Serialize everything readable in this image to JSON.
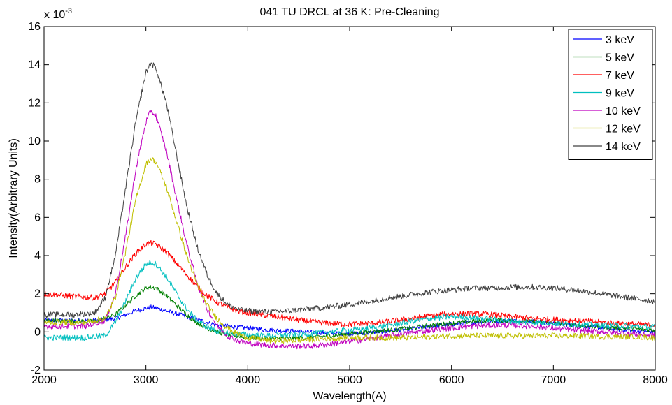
{
  "chart_data": {
    "type": "line",
    "title": "041 TU DRCL at 36 K: Pre-Cleaning",
    "xlabel": "Wavelength(A)",
    "ylabel": "Intensity(Arbitrary Units)",
    "y_multiplier_base": "x 10",
    "y_multiplier_exp": "-3",
    "xlim": [
      2000,
      8000
    ],
    "ylim": [
      -2,
      16
    ],
    "xticks": [
      2000,
      3000,
      4000,
      5000,
      6000,
      7000,
      8000
    ],
    "yticks": [
      -2,
      0,
      2,
      4,
      6,
      8,
      10,
      12,
      14,
      16
    ],
    "grid": false,
    "legend_position": "top-right",
    "series": [
      {
        "name": "3 keV",
        "color": "#0000ff",
        "noise": 0.12,
        "x": [
          2000,
          2500,
          2700,
          2800,
          2900,
          3000,
          3050,
          3100,
          3200,
          3300,
          3400,
          3500,
          3600,
          3700,
          3800,
          4000,
          4200,
          4400,
          4600,
          4800,
          5000,
          5200,
          5400,
          5600,
          5800,
          6000,
          6200,
          6400,
          6600,
          6800,
          7000,
          7200,
          7500,
          7800,
          8000
        ],
        "y": [
          0.6,
          0.6,
          0.7,
          0.9,
          1.1,
          1.25,
          1.3,
          1.25,
          1.1,
          0.95,
          0.8,
          0.65,
          0.5,
          0.35,
          0.3,
          0.2,
          0.1,
          0.05,
          0.0,
          -0.05,
          -0.1,
          -0.05,
          0.05,
          0.15,
          0.3,
          0.4,
          0.5,
          0.55,
          0.6,
          0.55,
          0.45,
          0.35,
          0.2,
          0.05,
          0.0
        ]
      },
      {
        "name": "5 keV",
        "color": "#008000",
        "noise": 0.12,
        "x": [
          2000,
          2500,
          2700,
          2800,
          2900,
          3000,
          3050,
          3100,
          3200,
          3300,
          3400,
          3500,
          3600,
          3700,
          3800,
          4000,
          4200,
          4400,
          4600,
          4800,
          5000,
          5200,
          5400,
          5600,
          5800,
          6000,
          6200,
          6400,
          6600,
          6800,
          7000,
          7200,
          7500,
          7800,
          8000
        ],
        "y": [
          0.6,
          0.55,
          0.9,
          1.4,
          1.9,
          2.3,
          2.35,
          2.3,
          1.9,
          1.4,
          0.9,
          0.5,
          0.2,
          0.0,
          -0.15,
          -0.3,
          -0.35,
          -0.35,
          -0.3,
          -0.2,
          -0.1,
          0.0,
          0.1,
          0.2,
          0.35,
          0.45,
          0.55,
          0.6,
          0.6,
          0.55,
          0.45,
          0.35,
          0.25,
          0.15,
          0.1
        ]
      },
      {
        "name": "7 keV",
        "color": "#ff0000",
        "noise": 0.15,
        "x": [
          2000,
          2300,
          2500,
          2600,
          2700,
          2800,
          2900,
          3000,
          3050,
          3100,
          3200,
          3300,
          3400,
          3500,
          3600,
          3700,
          3800,
          3900,
          4000,
          4200,
          4400,
          4600,
          4800,
          5000,
          5200,
          5400,
          5600,
          5800,
          6000,
          6200,
          6400,
          6600,
          6800,
          7000,
          7200,
          7500,
          7800,
          8000
        ],
        "y": [
          2.0,
          1.85,
          1.8,
          2.0,
          2.6,
          3.4,
          4.1,
          4.6,
          4.65,
          4.6,
          4.2,
          3.6,
          3.0,
          2.4,
          1.9,
          1.55,
          1.3,
          1.1,
          1.0,
          0.85,
          0.7,
          0.55,
          0.45,
          0.4,
          0.45,
          0.55,
          0.7,
          0.85,
          0.95,
          0.95,
          0.9,
          0.8,
          0.7,
          0.65,
          0.6,
          0.5,
          0.4,
          0.35
        ]
      },
      {
        "name": "9 keV",
        "color": "#00bfbf",
        "noise": 0.15,
        "x": [
          2000,
          2400,
          2600,
          2700,
          2800,
          2900,
          3000,
          3050,
          3100,
          3200,
          3300,
          3400,
          3500,
          3600,
          3700,
          3800,
          4000,
          4200,
          4400,
          4600,
          4800,
          5000,
          5200,
          5400,
          5600,
          5800,
          6000,
          6200,
          6400,
          6600,
          6800,
          7000,
          7200,
          7500,
          7800,
          8000
        ],
        "y": [
          -0.3,
          -0.3,
          -0.2,
          0.5,
          1.6,
          2.8,
          3.55,
          3.65,
          3.55,
          2.9,
          2.0,
          1.2,
          0.6,
          0.25,
          0.05,
          -0.05,
          -0.15,
          -0.2,
          -0.15,
          -0.1,
          0.0,
          0.1,
          0.2,
          0.35,
          0.55,
          0.7,
          0.8,
          0.75,
          0.65,
          0.55,
          0.5,
          0.45,
          0.4,
          0.35,
          0.3,
          0.25
        ]
      },
      {
        "name": "10 keV",
        "color": "#bf00bf",
        "noise": 0.15,
        "x": [
          2000,
          2400,
          2600,
          2700,
          2800,
          2900,
          3000,
          3050,
          3100,
          3200,
          3300,
          3400,
          3500,
          3600,
          3700,
          3800,
          3900,
          4000,
          4200,
          4400,
          4600,
          4800,
          5000,
          5200,
          5400,
          5600,
          5800,
          6000,
          6200,
          6400,
          6600,
          6800,
          7000,
          7200,
          7500,
          7800,
          8000
        ],
        "y": [
          0.3,
          0.3,
          0.6,
          2.0,
          5.0,
          8.5,
          11.0,
          11.6,
          11.3,
          9.5,
          7.0,
          4.6,
          2.6,
          1.2,
          0.3,
          -0.2,
          -0.45,
          -0.6,
          -0.7,
          -0.75,
          -0.75,
          -0.65,
          -0.5,
          -0.35,
          -0.2,
          -0.05,
          0.1,
          0.2,
          0.3,
          0.35,
          0.35,
          0.3,
          0.2,
          0.1,
          0.0,
          -0.1,
          -0.2
        ]
      },
      {
        "name": "12 keV",
        "color": "#bfbf00",
        "noise": 0.15,
        "x": [
          2000,
          2400,
          2600,
          2700,
          2800,
          2900,
          3000,
          3050,
          3100,
          3200,
          3300,
          3400,
          3500,
          3600,
          3700,
          3800,
          3900,
          4000,
          4200,
          4400,
          4600,
          4800,
          5000,
          5200,
          5400,
          5600,
          5800,
          6000,
          6200,
          6400,
          6600,
          6800,
          7000,
          7200,
          7500,
          7800,
          8000
        ],
        "y": [
          0.5,
          0.5,
          0.7,
          1.8,
          4.2,
          6.9,
          8.8,
          9.1,
          8.9,
          7.6,
          5.8,
          4.0,
          2.5,
          1.4,
          0.7,
          0.2,
          -0.1,
          -0.3,
          -0.45,
          -0.45,
          -0.4,
          -0.35,
          -0.3,
          -0.3,
          -0.3,
          -0.3,
          -0.25,
          -0.2,
          -0.2,
          -0.2,
          -0.2,
          -0.2,
          -0.2,
          -0.2,
          -0.25,
          -0.25,
          -0.3
        ]
      },
      {
        "name": "14 keV",
        "color": "#404040",
        "noise": 0.15,
        "x": [
          2000,
          2300,
          2500,
          2600,
          2700,
          2800,
          2900,
          3000,
          3050,
          3100,
          3200,
          3300,
          3400,
          3500,
          3600,
          3700,
          3800,
          3900,
          4000,
          4200,
          4400,
          4600,
          4800,
          5000,
          5200,
          5400,
          5600,
          5800,
          6000,
          6200,
          6400,
          6600,
          6800,
          7000,
          7200,
          7400,
          7600,
          7800,
          8000
        ],
        "y": [
          0.9,
          0.9,
          1.0,
          1.8,
          4.0,
          7.5,
          11.0,
          13.6,
          14.1,
          13.8,
          12.0,
          9.3,
          6.6,
          4.5,
          3.0,
          2.0,
          1.45,
          1.2,
          1.1,
          1.05,
          1.1,
          1.2,
          1.3,
          1.45,
          1.6,
          1.8,
          1.95,
          2.1,
          2.2,
          2.3,
          2.3,
          2.35,
          2.35,
          2.3,
          2.2,
          2.05,
          1.9,
          1.75,
          1.6
        ]
      }
    ]
  }
}
